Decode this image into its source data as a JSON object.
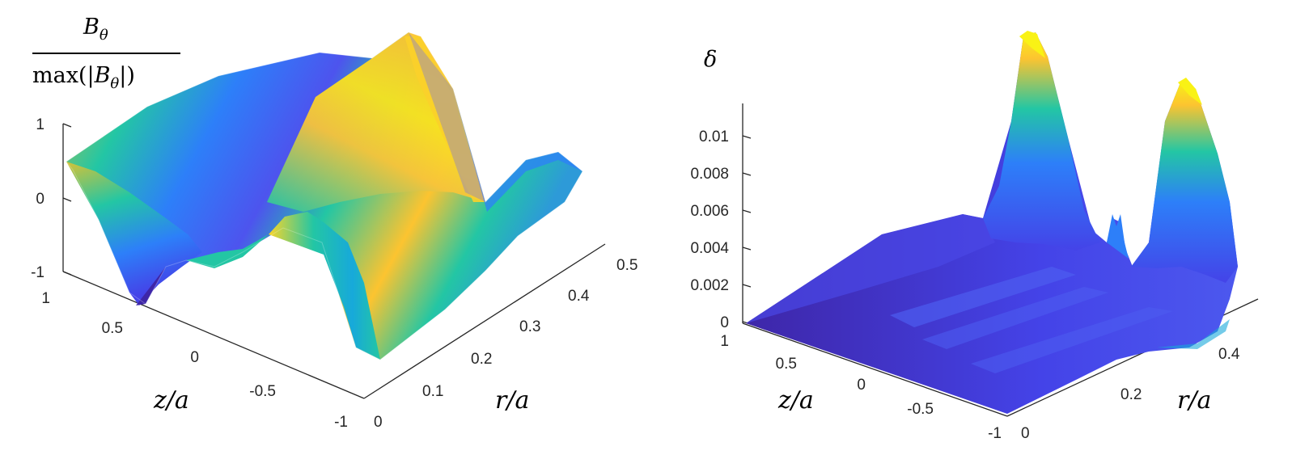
{
  "chart_data": [
    {
      "type": "surface",
      "title_numerator": "B",
      "title_numerator_sub": "θ",
      "title_denominator_prefix": "max(|",
      "title_denominator_var": "B",
      "title_denominator_sub": "θ",
      "title_denominator_suffix": "|)",
      "xlabel": "z/a",
      "ylabel": "r/a",
      "zticks": [
        "1",
        "0",
        "-1"
      ],
      "z_tick_values": [
        1,
        0,
        -1
      ],
      "xticks": [
        "1",
        "0.5",
        "0",
        "-0.5",
        "-1"
      ],
      "x_tick_values": [
        1,
        0.5,
        0,
        -0.5,
        -1
      ],
      "yticks": [
        "0",
        "0.1",
        "0.2",
        "0.3",
        "0.4",
        "0.5"
      ],
      "y_tick_values": [
        0,
        0.1,
        0.2,
        0.3,
        0.4,
        0.5
      ],
      "xlim": [
        -1,
        1
      ],
      "ylim": [
        0,
        0.5
      ],
      "zlim": [
        -1,
        1
      ],
      "colormap": "parula",
      "surface": "sinusoidal in z/a with roughly one period over [-1, 1]; values near -1 at z/a=0.5 and r/a=0, positive ridge crossing mid-domain, amplitude varying with r/a"
    },
    {
      "type": "surface",
      "title": "δ",
      "xlabel": "z/a",
      "ylabel": "r/a",
      "zticks": [
        "0.01",
        "0.008",
        "0.006",
        "0.004",
        "0.002",
        "0"
      ],
      "z_tick_values": [
        0.01,
        0.008,
        0.006,
        0.004,
        0.002,
        0
      ],
      "xticks": [
        "1",
        "0.5",
        "0",
        "-0.5",
        "-1"
      ],
      "x_tick_values": [
        1,
        0.5,
        0,
        -0.5,
        -1
      ],
      "yticks": [
        "0",
        "0.2",
        "0.4"
      ],
      "y_tick_values": [
        0,
        0.2,
        0.4
      ],
      "xlim": [
        -1,
        1
      ],
      "ylim": [
        0,
        0.5
      ],
      "zlim": [
        0,
        0.011
      ],
      "colormap": "parula",
      "surface": "near zero over most of the domain with low ridges; two sharp peaks (~0.0115 and ~0.01) near the outer radius r/a≈0.45–0.5"
    }
  ],
  "colors": {
    "parula": [
      "#3e26a8",
      "#4443e8",
      "#2d7ff9",
      "#17a9da",
      "#23c6a4",
      "#7cc957",
      "#d3bc3a",
      "#fcc430",
      "#f9fb15"
    ],
    "axis": "#262626",
    "background": "#ffffff"
  }
}
